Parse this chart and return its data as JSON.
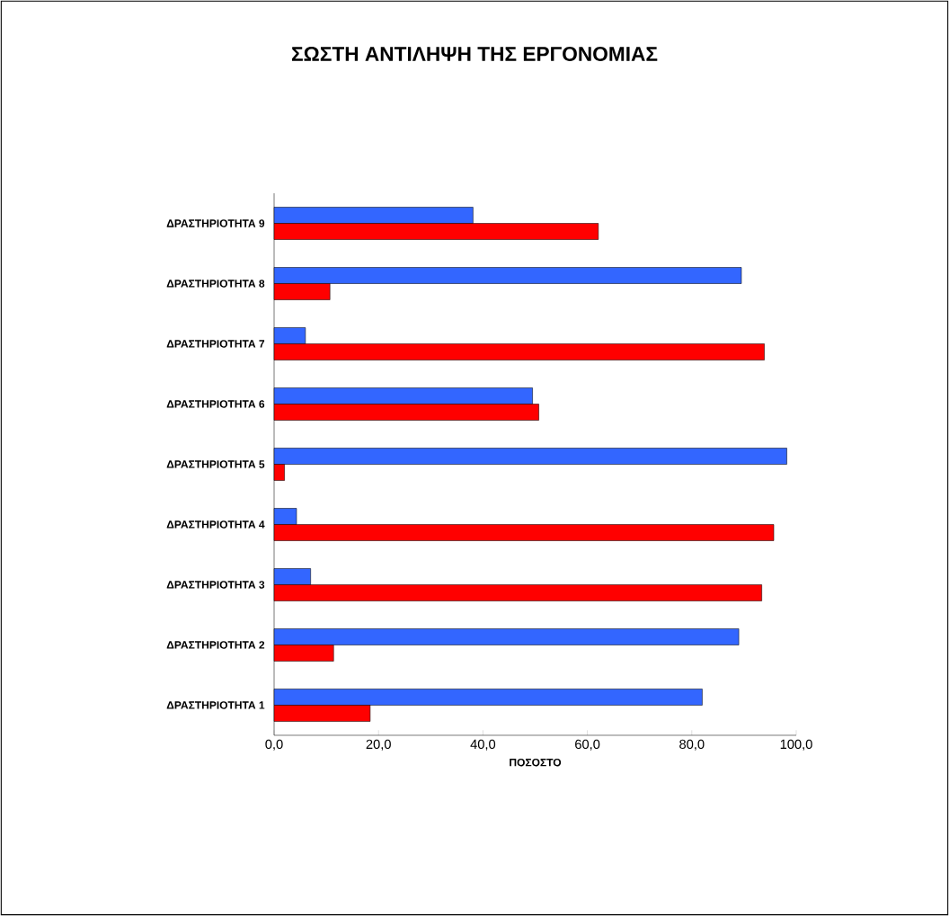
{
  "chart_data": {
    "type": "bar",
    "orientation": "horizontal",
    "title": "ΣΩΣΤΗ ΑΝΤΙΛΗΨΗ ΤΗΣ ΕΡΓΟΝΟΜΙΑΣ",
    "xlabel": "ΠΟΣΟΣΤΟ",
    "categories": [
      "ΔΡΑΣΤΗΡΙΟΤΗΤΑ 9",
      "ΔΡΑΣΤΗΡΙΟΤΗΤΑ 8",
      "ΔΡΑΣΤΗΡΙΟΤΗΤΑ 7",
      "ΔΡΑΣΤΗΡΙΟΤΗΤΑ 6",
      "ΔΡΑΣΤΗΡΙΟΤΗΤΑ 5",
      "ΔΡΑΣΤΗΡΙΟΤΗΤΑ 4",
      "ΔΡΑΣΤΗΡΙΟΤΗΤΑ 3",
      "ΔΡΑΣΤΗΡΙΟΤΗΤΑ 2",
      "ΔΡΑΣΤΗΡΙΟΤΗΤΑ 1"
    ],
    "series": [
      {
        "color": "#3366ff",
        "values": [
          38.1,
          89.5,
          6.0,
          49.5,
          98.2,
          4.3,
          7.0,
          89.0,
          82.0
        ]
      },
      {
        "color": "#ff0000",
        "values": [
          62.1,
          10.7,
          93.9,
          50.7,
          2.0,
          95.7,
          93.4,
          11.4,
          18.4
        ]
      }
    ],
    "xlim": [
      0,
      100
    ],
    "xticks": [
      {
        "value": 0,
        "label": "0,0"
      },
      {
        "value": 20,
        "label": "20,0"
      },
      {
        "value": 40,
        "label": "40,0"
      },
      {
        "value": 60,
        "label": "60,0"
      },
      {
        "value": 80,
        "label": "80,0"
      },
      {
        "value": 100,
        "label": "100,0"
      }
    ]
  }
}
